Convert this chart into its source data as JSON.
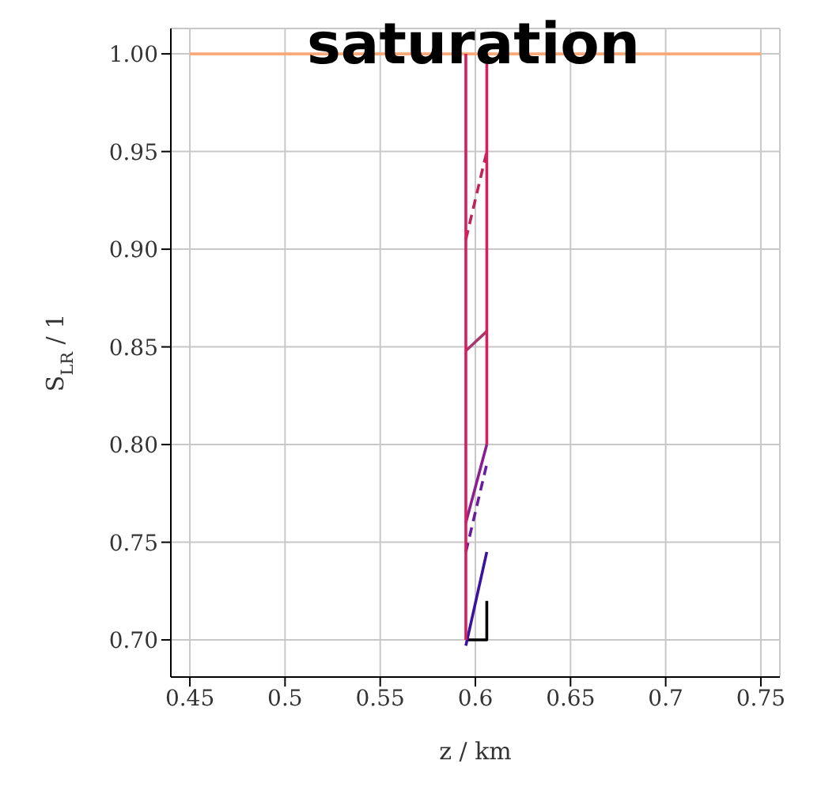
{
  "chart_data": {
    "type": "line",
    "title": "saturation",
    "xlabel": "z / km",
    "ylabel": "S$_{LR}$ / 1",
    "xlim": [
      0.44,
      0.76
    ],
    "ylim": [
      0.681,
      1.013
    ],
    "xticks": [
      0.45,
      0.5,
      0.55,
      0.6,
      0.65,
      0.7,
      0.75
    ],
    "yticks": [
      {
        "value": 0.7,
        "label": "0.70"
      },
      {
        "value": 0.75,
        "label": "0.75"
      },
      {
        "value": 0.8,
        "label": "0.80"
      },
      {
        "value": 0.85,
        "label": "0.85"
      },
      {
        "value": 0.9,
        "label": "0.90"
      },
      {
        "value": 0.95,
        "label": "0.95"
      },
      {
        "value": 1.0,
        "label": "1.00"
      }
    ],
    "grid": true,
    "marker": "none",
    "series": [
      {
        "color": "#f9a878",
        "x": [
          0.45,
          0.75
        ],
        "values": [
          1.0,
          1.0
        ],
        "line_style": "solid"
      },
      {
        "color": "#000000",
        "x": [
          0.596,
          0.606,
          0.606
        ],
        "values": [
          0.7,
          0.7,
          0.72
        ],
        "line_style": "solid"
      },
      {
        "color": "#3a12a0",
        "x": [
          0.595,
          0.606
        ],
        "values": [
          0.697,
          0.745
        ],
        "line_style": "solid"
      },
      {
        "color": "#6a1c9c",
        "x": [
          0.595,
          0.606
        ],
        "values": [
          0.745,
          0.79
        ],
        "line_style": "dashed"
      },
      {
        "color": "#8a2090",
        "x": [
          0.595,
          0.606
        ],
        "values": [
          0.76,
          0.8
        ],
        "line_style": "solid"
      },
      {
        "color": "#a8386e",
        "x": [
          0.595,
          0.606
        ],
        "values": [
          0.848,
          0.858
        ],
        "line_style": "solid"
      },
      {
        "color": "#c0245a",
        "x": [
          0.595,
          0.606
        ],
        "values": [
          0.905,
          0.95
        ],
        "line_style": "dashed"
      },
      {
        "color": "#d81e5b",
        "x": [
          0.595,
          0.595
        ],
        "values": [
          1.0,
          0.7
        ],
        "line_style": "solid"
      },
      {
        "color": "#d81e5b",
        "x": [
          0.606,
          0.606
        ],
        "values": [
          1.0,
          0.8
        ],
        "line_style": "solid"
      }
    ]
  }
}
